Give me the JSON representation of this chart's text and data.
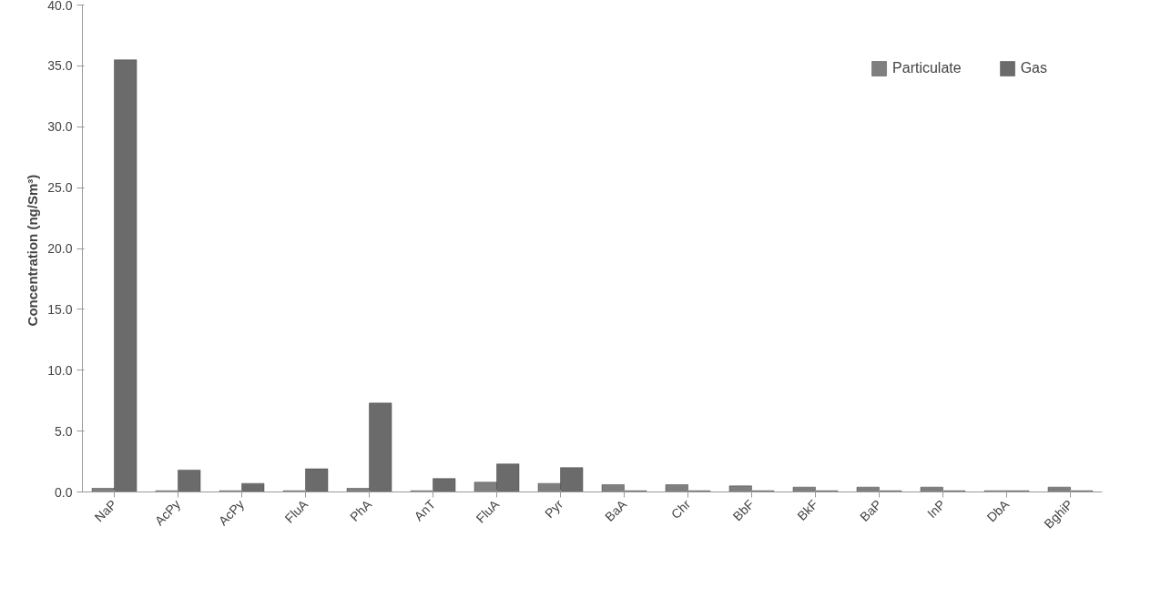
{
  "chart_data": {
    "type": "bar",
    "ylabel": "Concentration  (ng/Sm³)",
    "categories": [
      "NaP",
      "AcPy",
      "AcPy",
      "FluA",
      "PhA",
      "AnT",
      "FluA",
      "Pyr",
      "BaA",
      "Chr",
      "BbF",
      "BkF",
      "BaP",
      "InP",
      "DbA",
      "BghiP"
    ],
    "series": [
      {
        "name": "Particulate",
        "color": "#7f7f7f",
        "values": [
          0.3,
          0.1,
          0.1,
          0.1,
          0.3,
          0.1,
          0.8,
          0.7,
          0.6,
          0.6,
          0.5,
          0.4,
          0.4,
          0.4,
          0.1,
          0.4
        ]
      },
      {
        "name": "Gas",
        "color": "#6b6b6b",
        "values": [
          35.5,
          1.8,
          0.7,
          1.9,
          7.3,
          1.1,
          2.3,
          2.0,
          0.1,
          0.1,
          0.1,
          0.1,
          0.1,
          0.1,
          0.1,
          0.1
        ]
      }
    ],
    "ylim": [
      0,
      40
    ],
    "yticks": [
      {
        "value": 0,
        "label": "0.0"
      },
      {
        "value": 5,
        "label": "5.0"
      },
      {
        "value": 10,
        "label": "10.0"
      },
      {
        "value": 15,
        "label": "15.0"
      },
      {
        "value": 20,
        "label": "20.0"
      },
      {
        "value": 25,
        "label": "25.0"
      },
      {
        "value": 30,
        "label": "30.0"
      },
      {
        "value": 35,
        "label": "35.0"
      },
      {
        "value": 40,
        "label": "40.0"
      }
    ],
    "grid": false,
    "legend": "top right"
  }
}
